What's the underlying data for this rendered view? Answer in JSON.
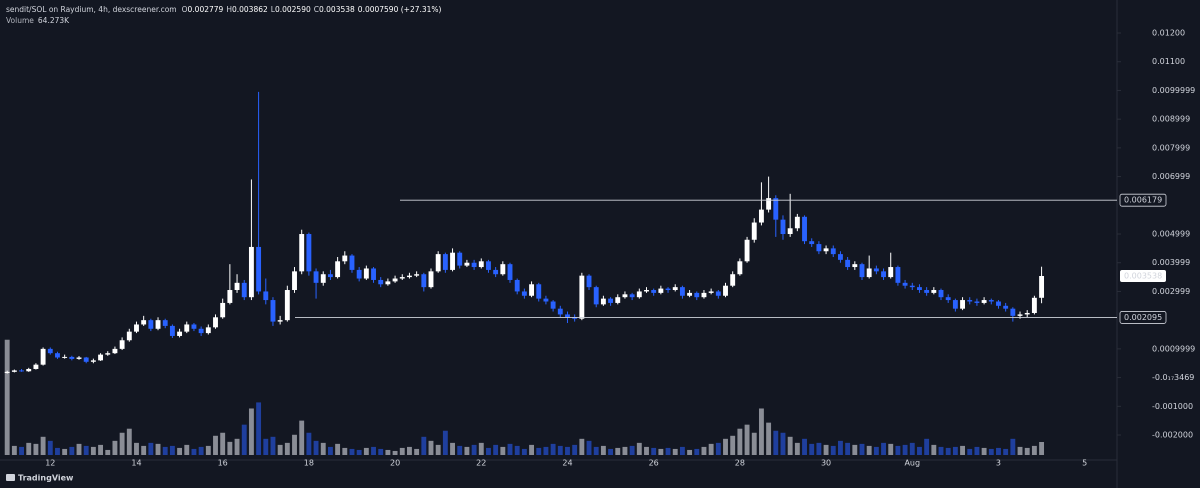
{
  "chart_data": {
    "type": "candlestick",
    "header": {
      "symbol": "sendit/SOL on Raydium, 4h, dexscreener.com",
      "ohlc": [
        {
          "label": "O",
          "value": "0.002779"
        },
        {
          "label": "H",
          "value": "0.003862"
        },
        {
          "label": "L",
          "value": "0.002590"
        },
        {
          "label": "C",
          "value": "0.003538"
        }
      ],
      "change": "0.0007590 (+27.31%)",
      "volume_label": "Volume",
      "volume_value": "64.273K"
    },
    "up_color": "#ffffff",
    "down_color": "#2962ff",
    "volume_up_color": "#8a8d96",
    "volume_down_color": "#1f3f9e",
    "open": [
      0.00016,
      0.0002,
      0.00025,
      0.00022,
      0.0003,
      0.00045,
      0.001,
      0.00085,
      0.0007,
      0.00072,
      0.00065,
      0.0007,
      0.00055,
      0.0006,
      0.0008,
      0.00085,
      0.001,
      0.0013,
      0.0016,
      0.00185,
      0.002,
      0.0017,
      0.002,
      0.0018,
      0.00145,
      0.0016,
      0.00185,
      0.0017,
      0.00155,
      0.00175,
      0.0021,
      0.0026,
      0.00305,
      0.0033,
      0.0028,
      0.00455,
      0.003,
      0.0027,
      0.00195,
      0.002,
      0.00305,
      0.0037,
      0.005,
      0.0037,
      0.0033,
      0.0036,
      0.0035,
      0.00405,
      0.00425,
      0.00375,
      0.00345,
      0.0038,
      0.0034,
      0.00325,
      0.00335,
      0.00345,
      0.0035,
      0.00355,
      0.0036,
      0.00315,
      0.0037,
      0.0043,
      0.00375,
      0.00435,
      0.0039,
      0.004,
      0.00385,
      0.00405,
      0.00375,
      0.0036,
      0.00395,
      0.0034,
      0.003,
      0.00285,
      0.00325,
      0.00275,
      0.00265,
      0.0024,
      0.0022,
      0.0021,
      0.00205,
      0.00355,
      0.00315,
      0.00255,
      0.00275,
      0.0026,
      0.0028,
      0.0029,
      0.0028,
      0.003,
      0.00305,
      0.00295,
      0.0031,
      0.00305,
      0.00315,
      0.00285,
      0.00295,
      0.0028,
      0.00295,
      0.003,
      0.00285,
      0.0032,
      0.0036,
      0.00405,
      0.0048,
      0.0054,
      0.00585,
      0.00625,
      0.0055,
      0.005,
      0.0052,
      0.0056,
      0.00475,
      0.00465,
      0.0044,
      0.0045,
      0.0043,
      0.0041,
      0.00385,
      0.00395,
      0.0035,
      0.0038,
      0.0037,
      0.0035,
      0.00385,
      0.0033,
      0.0032,
      0.00315,
      0.00305,
      0.00295,
      0.00305,
      0.0028,
      0.0027,
      0.0024,
      0.0027,
      0.00265,
      0.0026,
      0.0027,
      0.00265,
      0.0025,
      0.0024,
      0.00215,
      0.0022,
      0.00225,
      0.002779
    ],
    "high": [
      0.00024,
      0.00028,
      0.0003,
      0.00034,
      0.0005,
      0.00105,
      0.00105,
      0.0009,
      0.0008,
      0.00076,
      0.00075,
      0.00072,
      0.00066,
      0.00085,
      0.00092,
      0.00108,
      0.0014,
      0.0017,
      0.00195,
      0.00215,
      0.00205,
      0.0021,
      0.00205,
      0.00185,
      0.0017,
      0.00195,
      0.0019,
      0.00178,
      0.00185,
      0.0022,
      0.00275,
      0.00395,
      0.0036,
      0.0034,
      0.0069,
      0.00995,
      0.00345,
      0.0028,
      0.00215,
      0.0032,
      0.00385,
      0.00515,
      0.00505,
      0.0038,
      0.0037,
      0.00375,
      0.0042,
      0.0044,
      0.0043,
      0.00385,
      0.0039,
      0.00385,
      0.0035,
      0.00345,
      0.00355,
      0.0036,
      0.00365,
      0.0037,
      0.00365,
      0.0038,
      0.0044,
      0.00435,
      0.0045,
      0.0044,
      0.0041,
      0.0041,
      0.00415,
      0.0041,
      0.00385,
      0.00405,
      0.004,
      0.00345,
      0.0031,
      0.00335,
      0.0033,
      0.00285,
      0.0027,
      0.0025,
      0.0023,
      0.0022,
      0.00365,
      0.0036,
      0.0032,
      0.00285,
      0.0028,
      0.0029,
      0.003,
      0.00295,
      0.0031,
      0.00315,
      0.0031,
      0.0032,
      0.00315,
      0.00325,
      0.0032,
      0.00305,
      0.003,
      0.00305,
      0.0031,
      0.00305,
      0.0033,
      0.0037,
      0.00415,
      0.0049,
      0.00555,
      0.0068,
      0.007,
      0.00635,
      0.00565,
      0.0064,
      0.0057,
      0.00565,
      0.00485,
      0.00475,
      0.0046,
      0.0046,
      0.0044,
      0.0042,
      0.00405,
      0.004,
      0.00425,
      0.0039,
      0.0038,
      0.00435,
      0.0039,
      0.0034,
      0.0033,
      0.00325,
      0.00315,
      0.00315,
      0.0031,
      0.0029,
      0.00275,
      0.0028,
      0.0028,
      0.00275,
      0.0028,
      0.00275,
      0.0027,
      0.0026,
      0.00245,
      0.0023,
      0.00235,
      0.00285,
      0.003862
    ],
    "low": [
      0.00014,
      0.00018,
      0.0002,
      0.0002,
      0.00028,
      0.00042,
      0.0008,
      0.00065,
      0.00066,
      0.0006,
      0.00062,
      0.0005,
      0.0005,
      0.00058,
      0.00076,
      0.00082,
      0.00096,
      0.00125,
      0.00155,
      0.0018,
      0.00162,
      0.00165,
      0.00172,
      0.00138,
      0.0014,
      0.00155,
      0.00162,
      0.00145,
      0.0015,
      0.0017,
      0.00205,
      0.00255,
      0.00295,
      0.0027,
      0.0027,
      0.0029,
      0.00255,
      0.0018,
      0.00185,
      0.00195,
      0.00295,
      0.0036,
      0.00355,
      0.00275,
      0.0032,
      0.0034,
      0.00345,
      0.00395,
      0.00365,
      0.00335,
      0.0034,
      0.0033,
      0.00315,
      0.0032,
      0.0033,
      0.0034,
      0.00345,
      0.0035,
      0.003,
      0.0031,
      0.00365,
      0.00365,
      0.0037,
      0.0038,
      0.00385,
      0.00375,
      0.0038,
      0.00365,
      0.0035,
      0.00355,
      0.0033,
      0.0029,
      0.00275,
      0.0028,
      0.00265,
      0.00255,
      0.0023,
      0.0021,
      0.0019,
      0.00195,
      0.002,
      0.00305,
      0.00245,
      0.0025,
      0.0025,
      0.00255,
      0.00275,
      0.0027,
      0.00275,
      0.00295,
      0.00285,
      0.0029,
      0.00295,
      0.003,
      0.00275,
      0.0028,
      0.0027,
      0.00275,
      0.0029,
      0.00275,
      0.0028,
      0.00315,
      0.00355,
      0.004,
      0.0047,
      0.0053,
      0.00575,
      0.0049,
      0.0048,
      0.0049,
      0.0051,
      0.00465,
      0.00455,
      0.0043,
      0.0043,
      0.0042,
      0.004,
      0.00375,
      0.00375,
      0.0034,
      0.00345,
      0.0036,
      0.0034,
      0.00345,
      0.0032,
      0.0031,
      0.00305,
      0.00295,
      0.00285,
      0.0029,
      0.0027,
      0.0026,
      0.0023,
      0.00235,
      0.00255,
      0.0025,
      0.00255,
      0.00255,
      0.0024,
      0.0023,
      0.00195,
      0.00205,
      0.0021,
      0.0022,
      0.00259
    ],
    "close": [
      0.0002,
      0.00025,
      0.00022,
      0.0003,
      0.00045,
      0.001,
      0.00085,
      0.0007,
      0.00072,
      0.00065,
      0.0007,
      0.00055,
      0.0006,
      0.0008,
      0.00085,
      0.001,
      0.0013,
      0.0016,
      0.00185,
      0.002,
      0.0017,
      0.002,
      0.0018,
      0.00145,
      0.0016,
      0.00185,
      0.0017,
      0.00155,
      0.00175,
      0.0021,
      0.0026,
      0.00305,
      0.0033,
      0.0028,
      0.00455,
      0.003,
      0.0027,
      0.00195,
      0.002,
      0.00305,
      0.0037,
      0.005,
      0.0037,
      0.0033,
      0.0036,
      0.0035,
      0.00405,
      0.00425,
      0.00375,
      0.00345,
      0.0038,
      0.0034,
      0.00325,
      0.00335,
      0.00345,
      0.0035,
      0.00355,
      0.0036,
      0.00315,
      0.0037,
      0.0043,
      0.00375,
      0.00435,
      0.0039,
      0.004,
      0.00385,
      0.00405,
      0.00375,
      0.0036,
      0.00395,
      0.0034,
      0.003,
      0.00285,
      0.00325,
      0.00275,
      0.00265,
      0.0024,
      0.0022,
      0.0021,
      0.00205,
      0.00355,
      0.00315,
      0.00255,
      0.00275,
      0.0026,
      0.0028,
      0.0029,
      0.0028,
      0.003,
      0.00305,
      0.00295,
      0.0031,
      0.00305,
      0.00315,
      0.00285,
      0.00295,
      0.0028,
      0.00295,
      0.003,
      0.00285,
      0.0032,
      0.0036,
      0.00405,
      0.0048,
      0.0054,
      0.00585,
      0.00625,
      0.0055,
      0.005,
      0.0052,
      0.0056,
      0.00475,
      0.00465,
      0.0044,
      0.0045,
      0.0043,
      0.0041,
      0.00385,
      0.00395,
      0.0035,
      0.0038,
      0.0037,
      0.0035,
      0.00385,
      0.0033,
      0.0032,
      0.00315,
      0.00305,
      0.00295,
      0.00305,
      0.0028,
      0.0027,
      0.0024,
      0.0027,
      0.00265,
      0.0026,
      0.0027,
      0.00265,
      0.0025,
      0.0024,
      0.00215,
      0.0022,
      0.00225,
      0.002779,
      0.003538
    ],
    "volume": [
      570000,
      45000,
      40000,
      60000,
      55000,
      90000,
      70000,
      35000,
      30000,
      40000,
      55000,
      45000,
      40000,
      50000,
      25000,
      70000,
      110000,
      130000,
      60000,
      45000,
      60000,
      55000,
      40000,
      45000,
      35000,
      50000,
      30000,
      40000,
      45000,
      95000,
      110000,
      65000,
      80000,
      150000,
      230000,
      260000,
      80000,
      90000,
      50000,
      60000,
      100000,
      170000,
      110000,
      70000,
      60000,
      40000,
      55000,
      35000,
      30000,
      25000,
      35000,
      40000,
      30000,
      25000,
      20000,
      35000,
      40000,
      30000,
      90000,
      70000,
      50000,
      120000,
      60000,
      45000,
      40000,
      50000,
      60000,
      35000,
      50000,
      40000,
      55000,
      45000,
      30000,
      50000,
      35000,
      40000,
      55000,
      45000,
      40000,
      50000,
      80000,
      70000,
      40000,
      45000,
      30000,
      35000,
      40000,
      45000,
      60000,
      40000,
      35000,
      30000,
      35000,
      30000,
      40000,
      25000,
      30000,
      40000,
      55000,
      60000,
      80000,
      95000,
      130000,
      150000,
      110000,
      230000,
      160000,
      120000,
      110000,
      90000,
      60000,
      80000,
      55000,
      60000,
      50000,
      45000,
      70000,
      60000,
      50000,
      55000,
      45000,
      40000,
      60000,
      55000,
      45000,
      50000,
      60000,
      40000,
      80000,
      50000,
      40000,
      35000,
      40000,
      45000,
      30000,
      40000,
      35000,
      30000,
      35000,
      30000,
      80000,
      40000,
      35000,
      45000,
      64273
    ],
    "xlim": [
      -1,
      154.5
    ],
    "xticks": [
      {
        "value": 6,
        "label": "12"
      },
      {
        "value": 18,
        "label": "14"
      },
      {
        "value": 30,
        "label": "16"
      },
      {
        "value": 42,
        "label": "18"
      },
      {
        "value": 54,
        "label": "20"
      },
      {
        "value": 66,
        "label": "22"
      },
      {
        "value": 78,
        "label": "24"
      },
      {
        "value": 90,
        "label": "26"
      },
      {
        "value": 102,
        "label": "28"
      },
      {
        "value": 114,
        "label": "30"
      },
      {
        "value": 126,
        "label": "Aug"
      },
      {
        "value": 138,
        "label": "3"
      },
      {
        "value": 150,
        "label": "5"
      }
    ],
    "ylim": [
      -0.00287,
      0.01315
    ],
    "yticks": [
      {
        "value": 0.012,
        "label": "0.01200"
      },
      {
        "value": 0.011,
        "label": "0.01100"
      },
      {
        "value": 0.01,
        "label": "0.0099999"
      },
      {
        "value": 0.009,
        "label": "0.008999"
      },
      {
        "value": 0.008,
        "label": "0.007999"
      },
      {
        "value": 0.007,
        "label": "0.006999"
      },
      {
        "value": 0.005,
        "label": "0.004999"
      },
      {
        "value": 0.004,
        "label": "0.003999"
      },
      {
        "value": 0.003,
        "label": "0.002999"
      },
      {
        "value": 0.001,
        "label": "0.0009999"
      },
      {
        "value": 0,
        "label": "-0.0₁₇3469"
      },
      {
        "value": -0.001,
        "label": "-0.001000"
      },
      {
        "value": -0.002,
        "label": "-0.002000"
      }
    ],
    "y2lim": [
      0,
      2250000
    ],
    "price_lines": [
      0.006179,
      0.002095
    ],
    "watermark": "TradingView"
  }
}
